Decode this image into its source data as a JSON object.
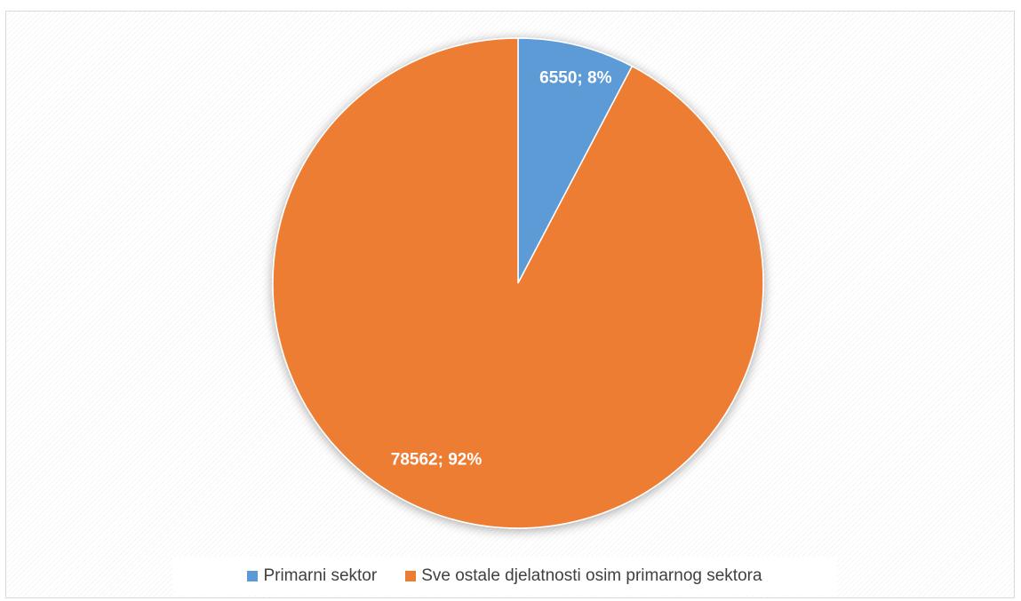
{
  "chart_data": {
    "type": "pie",
    "title": "",
    "slices": [
      {
        "name": "Primarni sektor",
        "value": 6550,
        "percent": 8,
        "label": "6550; 8%",
        "color": "#5b9bd5"
      },
      {
        "name": "Sve ostale djelatnosti osim primarnog sektora",
        "value": 78562,
        "percent": 92,
        "label": "78562; 92%",
        "color": "#ed7d31"
      }
    ],
    "legend_position": "bottom",
    "label_color": "#ffffff"
  }
}
